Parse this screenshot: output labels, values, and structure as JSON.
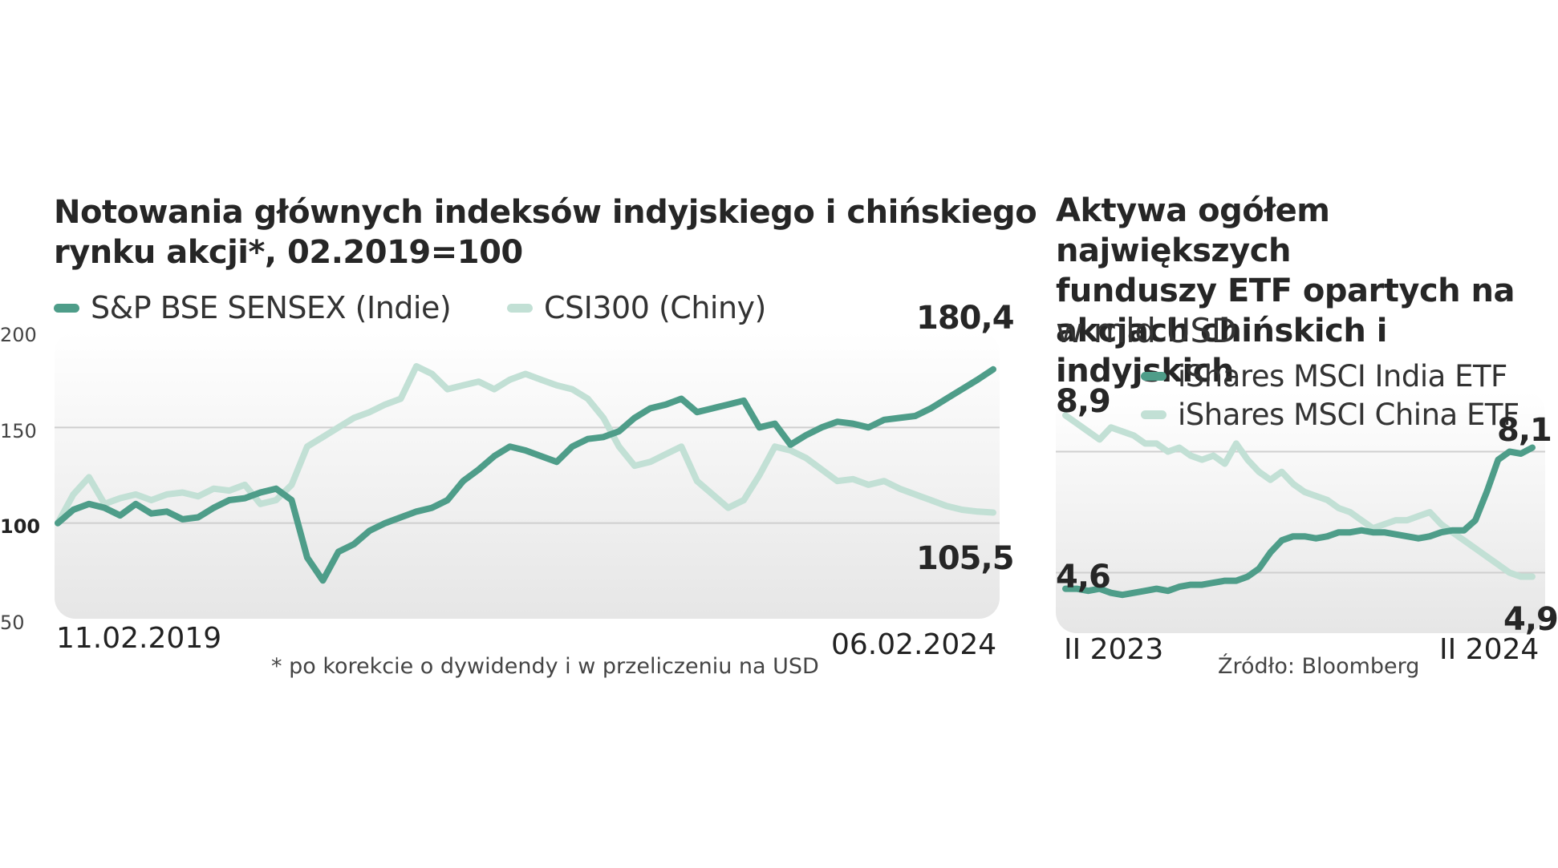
{
  "chart_data": [
    {
      "type": "line",
      "title": "Notowania głównych indeksów indyjskiego i chińskiego rynku akcji*, 02.2019=100",
      "title_line1": "Notowania głównych indeksów indyjskiego i chińskiego",
      "title_line2": "rynku akcji*, 02.2019=100",
      "ylim": [
        50,
        200
      ],
      "yticks": [
        "200",
        "150",
        "100",
        "50"
      ],
      "ytick_values": [
        200,
        150,
        100,
        50
      ],
      "x_start_label": "11.02.2019",
      "x_end_label": "06.02.2024",
      "x": [
        "2019-02",
        "2019-03",
        "2019-04",
        "2019-05",
        "2019-06",
        "2019-07",
        "2019-08",
        "2019-09",
        "2019-10",
        "2019-11",
        "2019-12",
        "2020-01",
        "2020-02",
        "2020-03",
        "2020-04",
        "2020-05",
        "2020-06",
        "2020-07",
        "2020-08",
        "2020-09",
        "2020-10",
        "2020-11",
        "2020-12",
        "2021-01",
        "2021-02",
        "2021-03",
        "2021-04",
        "2021-05",
        "2021-06",
        "2021-07",
        "2021-08",
        "2021-09",
        "2021-10",
        "2021-11",
        "2021-12",
        "2022-01",
        "2022-02",
        "2022-03",
        "2022-04",
        "2022-05",
        "2022-06",
        "2022-07",
        "2022-08",
        "2022-09",
        "2022-10",
        "2022-11",
        "2022-12",
        "2023-01",
        "2023-02",
        "2023-03",
        "2023-04",
        "2023-05",
        "2023-06",
        "2023-07",
        "2023-08",
        "2023-09",
        "2023-10",
        "2023-11",
        "2023-12",
        "2024-01",
        "2024-02"
      ],
      "series": [
        {
          "name": "S&P BSE SENSEX (Indie)",
          "color": "#4e9d89",
          "values": [
            100,
            107,
            110,
            108,
            104,
            110,
            105,
            106,
            102,
            103,
            108,
            112,
            113,
            116,
            118,
            112,
            82,
            70,
            85,
            89,
            96,
            100,
            103,
            106,
            108,
            112,
            122,
            128,
            135,
            140,
            138,
            135,
            132,
            140,
            144,
            145,
            148,
            155,
            160,
            162,
            165,
            158,
            160,
            162,
            164,
            150,
            152,
            141,
            146,
            150,
            153,
            152,
            150,
            154,
            155,
            156,
            160,
            165,
            170,
            175,
            180.4
          ]
        },
        {
          "name": "CSI300 (Chiny)",
          "color": "#c2e0d5",
          "values": [
            100,
            115,
            124,
            110,
            113,
            115,
            112,
            115,
            116,
            114,
            118,
            117,
            120,
            110,
            112,
            120,
            140,
            145,
            150,
            155,
            158,
            162,
            165,
            182,
            178,
            170,
            172,
            174,
            170,
            175,
            178,
            175,
            172,
            170,
            165,
            155,
            140,
            130,
            132,
            136,
            140,
            122,
            115,
            108,
            112,
            125,
            140,
            138,
            134,
            128,
            122,
            123,
            120,
            122,
            118,
            115,
            112,
            109,
            107,
            106,
            105.5
          ]
        }
      ],
      "end_labels": {
        "sensex": "180,4",
        "csi300": "105,5"
      },
      "grid": true,
      "legend_position": "top-left",
      "footnote": "* po korekcie o dywidendy i w przeliczeniu na USD"
    },
    {
      "type": "line",
      "title": "Aktywa ogółem największych funduszy ETF opartych na akcjach chińskich i indyjskich",
      "title_line1": "Aktywa ogółem największych",
      "title_line2": "funduszy ETF opartych na",
      "title_line3": "akcjach chińskich i indyjskich",
      "subtitle": "w mld USD",
      "ylim": [
        3.5,
        9.5
      ],
      "x_start_label": "II 2023",
      "x_end_label": "II 2024",
      "series": [
        {
          "name": "iShares MSCI India ETF",
          "color": "#4e9d89",
          "values": [
            4.6,
            4.6,
            4.55,
            4.6,
            4.5,
            4.45,
            4.5,
            4.55,
            4.6,
            4.55,
            4.65,
            4.7,
            4.7,
            4.75,
            4.8,
            4.8,
            4.9,
            5.1,
            5.5,
            5.8,
            5.9,
            5.9,
            5.85,
            5.9,
            6.0,
            6.0,
            6.05,
            6.0,
            6.0,
            5.95,
            5.9,
            5.85,
            5.9,
            6.0,
            6.05,
            6.05,
            6.3,
            7.0,
            7.8,
            8.0,
            7.95,
            8.1
          ]
        },
        {
          "name": "iShares MSCI China ETF",
          "color": "#c2e0d5",
          "values": [
            8.9,
            8.7,
            8.5,
            8.3,
            8.6,
            8.5,
            8.4,
            8.2,
            8.2,
            8.0,
            8.1,
            7.9,
            7.8,
            7.9,
            7.7,
            8.2,
            7.8,
            7.5,
            7.3,
            7.5,
            7.2,
            7.0,
            6.9,
            6.8,
            6.6,
            6.5,
            6.3,
            6.1,
            6.2,
            6.3,
            6.3,
            6.4,
            6.5,
            6.2,
            6.0,
            5.8,
            5.6,
            5.4,
            5.2,
            5.0,
            4.9,
            4.9
          ]
        }
      ],
      "start_labels": {
        "china": "8,9",
        "india": "4,6"
      },
      "end_labels": {
        "india": "8,1",
        "china": "4,9"
      },
      "grid": true,
      "source": "Źródło: Bloomberg"
    }
  ]
}
